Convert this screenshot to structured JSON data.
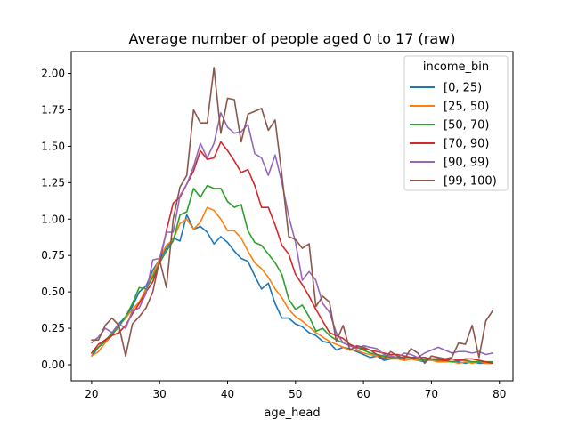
{
  "chart_data": {
    "type": "line",
    "title": "Average number of people aged 0 to 17 (raw)",
    "xlabel": "age_head",
    "ylabel": "",
    "xlim": [
      17,
      82
    ],
    "ylim": [
      -0.11,
      2.15
    ],
    "xticks": [
      20,
      30,
      40,
      50,
      60,
      70,
      80
    ],
    "yticks": [
      0.0,
      0.25,
      0.5,
      0.75,
      1.0,
      1.25,
      1.5,
      1.75,
      2.0
    ],
    "ytick_labels": [
      "0.00",
      "0.25",
      "0.50",
      "0.75",
      "1.00",
      "1.25",
      "1.50",
      "1.75",
      "2.00"
    ],
    "grid": false,
    "legend": {
      "title": "income_bin",
      "placement": "top-right"
    },
    "x": [
      20,
      21,
      22,
      23,
      24,
      25,
      26,
      27,
      28,
      29,
      30,
      31,
      32,
      33,
      34,
      35,
      36,
      37,
      38,
      39,
      40,
      41,
      42,
      43,
      44,
      45,
      46,
      47,
      48,
      49,
      50,
      51,
      52,
      53,
      54,
      55,
      56,
      57,
      58,
      59,
      60,
      61,
      62,
      63,
      64,
      65,
      66,
      67,
      68,
      69,
      70,
      71,
      72,
      73,
      74,
      75,
      76,
      77,
      78,
      79
    ],
    "series": [
      {
        "name": "[0, 25)",
        "color": "#1f77b4",
        "values": [
          0.06,
          0.12,
          0.16,
          0.22,
          0.28,
          0.33,
          0.4,
          0.5,
          0.54,
          0.65,
          0.72,
          0.8,
          0.87,
          0.85,
          1.03,
          0.93,
          0.95,
          0.91,
          0.83,
          0.88,
          0.84,
          0.78,
          0.73,
          0.71,
          0.61,
          0.52,
          0.56,
          0.42,
          0.32,
          0.32,
          0.28,
          0.26,
          0.22,
          0.2,
          0.16,
          0.15,
          0.1,
          0.12,
          0.11,
          0.09,
          0.07,
          0.05,
          0.06,
          0.03,
          0.04,
          0.05,
          0.03,
          0.04,
          0.03,
          0.02,
          0.04,
          0.02,
          0.03,
          0.02,
          0.02,
          0.01,
          0.02,
          0.01,
          0.01,
          0.01
        ]
      },
      {
        "name": "[25, 50)",
        "color": "#ff7f0e",
        "values": [
          0.06,
          0.09,
          0.15,
          0.2,
          0.27,
          0.32,
          0.38,
          0.43,
          0.52,
          0.62,
          0.73,
          0.82,
          0.86,
          0.97,
          1.0,
          0.93,
          0.98,
          1.08,
          1.06,
          1.0,
          0.92,
          0.92,
          0.87,
          0.78,
          0.7,
          0.66,
          0.6,
          0.52,
          0.46,
          0.38,
          0.33,
          0.3,
          0.26,
          0.22,
          0.19,
          0.16,
          0.14,
          0.12,
          0.1,
          0.1,
          0.08,
          0.07,
          0.06,
          0.05,
          0.04,
          0.04,
          0.03,
          0.04,
          0.03,
          0.03,
          0.03,
          0.02,
          0.02,
          0.02,
          0.01,
          0.02,
          0.01,
          0.02,
          0.01,
          0.01
        ]
      },
      {
        "name": "[50, 70)",
        "color": "#2ca02c",
        "values": [
          0.08,
          0.12,
          0.17,
          0.21,
          0.26,
          0.33,
          0.42,
          0.53,
          0.52,
          0.6,
          0.7,
          0.78,
          0.85,
          1.03,
          1.05,
          1.21,
          1.15,
          1.23,
          1.21,
          1.21,
          1.12,
          1.08,
          1.1,
          0.92,
          0.84,
          0.82,
          0.76,
          0.7,
          0.62,
          0.45,
          0.38,
          0.41,
          0.33,
          0.23,
          0.25,
          0.2,
          0.17,
          0.15,
          0.13,
          0.12,
          0.1,
          0.08,
          0.07,
          0.06,
          0.05,
          0.05,
          0.05,
          0.05,
          0.04,
          0.03,
          0.04,
          0.03,
          0.03,
          0.02,
          0.03,
          0.03,
          0.02,
          0.02,
          0.02,
          0.02
        ]
      },
      {
        "name": "[70, 90)",
        "color": "#d62728",
        "values": [
          0.08,
          0.14,
          0.17,
          0.2,
          0.22,
          0.27,
          0.35,
          0.42,
          0.5,
          0.57,
          0.7,
          0.92,
          1.11,
          1.15,
          1.24,
          1.33,
          1.47,
          1.41,
          1.42,
          1.53,
          1.47,
          1.4,
          1.32,
          1.34,
          1.23,
          1.08,
          1.08,
          0.96,
          0.82,
          0.76,
          0.62,
          0.55,
          0.47,
          0.38,
          0.3,
          0.22,
          0.2,
          0.18,
          0.14,
          0.12,
          0.11,
          0.1,
          0.09,
          0.08,
          0.07,
          0.07,
          0.06,
          0.05,
          0.05,
          0.05,
          0.04,
          0.04,
          0.03,
          0.04,
          0.03,
          0.04,
          0.04,
          0.03,
          0.02,
          0.01
        ]
      },
      {
        "name": "[90, 99)",
        "color": "#9467bd",
        "values": [
          0.15,
          0.19,
          0.25,
          0.22,
          0.28,
          0.25,
          0.37,
          0.39,
          0.49,
          0.72,
          0.73,
          0.91,
          0.91,
          1.16,
          1.24,
          1.36,
          1.52,
          1.42,
          1.52,
          1.73,
          1.63,
          1.59,
          1.6,
          1.65,
          1.45,
          1.42,
          1.3,
          1.44,
          1.25,
          1.02,
          0.84,
          0.58,
          0.64,
          0.58,
          0.42,
          0.36,
          0.22,
          0.15,
          0.13,
          0.11,
          0.13,
          0.12,
          0.11,
          0.07,
          0.06,
          0.05,
          0.08,
          0.07,
          0.05,
          0.08,
          0.1,
          0.12,
          0.1,
          0.08,
          0.09,
          0.09,
          0.08,
          0.09,
          0.07,
          0.08
        ]
      },
      {
        "name": "[99, 100)",
        "color": "#8c564b",
        "values": [
          0.17,
          0.17,
          0.27,
          0.32,
          0.27,
          0.06,
          0.28,
          0.33,
          0.39,
          0.5,
          0.72,
          0.53,
          1.0,
          1.22,
          1.3,
          1.75,
          1.66,
          1.66,
          2.04,
          1.59,
          1.83,
          1.82,
          1.53,
          1.72,
          1.74,
          1.76,
          1.61,
          1.68,
          1.3,
          0.88,
          0.86,
          0.8,
          0.83,
          0.4,
          0.47,
          0.43,
          0.16,
          0.27,
          0.1,
          0.13,
          0.12,
          0.1,
          0.07,
          0.04,
          0.09,
          0.06,
          0.04,
          0.11,
          0.08,
          0.01,
          0.06,
          0.05,
          0.04,
          0.05,
          0.15,
          0.14,
          0.27,
          0.05,
          0.3,
          0.37
        ]
      }
    ]
  }
}
